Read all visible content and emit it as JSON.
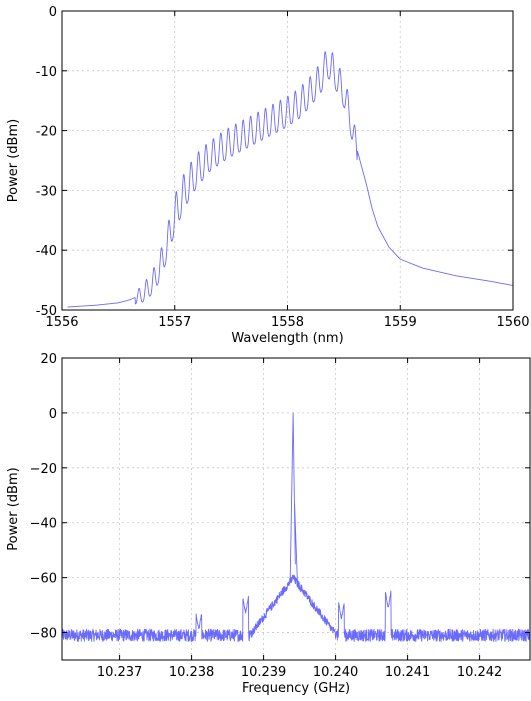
{
  "chart_data": [
    {
      "type": "line",
      "title": "",
      "xlabel": "Wavelength (nm)",
      "ylabel": "Power (dBm)",
      "xlim": [
        1556,
        1560
      ],
      "ylim": [
        -50,
        0
      ],
      "xticks": [
        1556,
        1557,
        1558,
        1559,
        1560
      ],
      "yticks": [
        0,
        -10,
        -20,
        -30,
        -40,
        -50
      ],
      "grid": true,
      "color": "#6a6aff",
      "series": [
        {
          "x": [
            1556.05,
            1556.3,
            1556.5,
            1556.6,
            1556.7,
            1556.75,
            1556.8,
            1556.85,
            1556.9,
            1556.95,
            1557.0,
            1557.05,
            1557.1,
            1557.2,
            1557.3,
            1557.4,
            1557.5,
            1557.6,
            1557.7,
            1557.8,
            1557.9,
            1558.0,
            1558.1,
            1558.2,
            1558.3,
            1558.35,
            1558.4,
            1558.45,
            1558.5,
            1558.55,
            1558.6,
            1558.7,
            1558.75,
            1558.8,
            1558.9,
            1559.0,
            1559.2,
            1559.5,
            1559.8,
            1560.0
          ],
          "y": [
            -49.5,
            -49.2,
            -48.8,
            -48.3,
            -47.5,
            -46.5,
            -45.5,
            -43.5,
            -41.0,
            -37.5,
            -34.0,
            -31.5,
            -29.5,
            -26.5,
            -24.5,
            -23.0,
            -21.8,
            -20.8,
            -19.8,
            -18.8,
            -17.8,
            -16.8,
            -15.5,
            -13.5,
            -11.0,
            -8.5,
            -9.5,
            -11.5,
            -13.5,
            -17.0,
            -22.0,
            -29.0,
            -33.0,
            -36.0,
            -39.5,
            -41.5,
            -43.0,
            -44.3,
            -45.2,
            -45.9
          ]
        }
      ]
    },
    {
      "type": "line",
      "title": "",
      "xlabel": "Frequency (GHz)",
      "ylabel": "Power (dBm)",
      "xlim": [
        10.2362,
        10.2427
      ],
      "ylim": [
        -90,
        20
      ],
      "xticks": [
        10.237,
        10.238,
        10.239,
        10.24,
        10.241,
        10.242
      ],
      "xtick_labels": [
        "10.237",
        "10.238",
        "10.239",
        "10.240",
        "10.241",
        "10.242"
      ],
      "yticks": [
        20,
        0,
        -20,
        -40,
        -60,
        -80
      ],
      "yaxis_style": "minus-sign",
      "grid": true,
      "color": "#6a6aff",
      "noise_floor": -81,
      "peaks": [
        {
          "x": 10.23941,
          "y": 0
        },
        {
          "x": 10.23943,
          "y": -33
        },
        {
          "x": 10.2381,
          "y": -79
        },
        {
          "x": 10.23875,
          "y": -73
        },
        {
          "x": 10.24008,
          "y": -75
        },
        {
          "x": 10.24073,
          "y": -71
        }
      ]
    }
  ]
}
